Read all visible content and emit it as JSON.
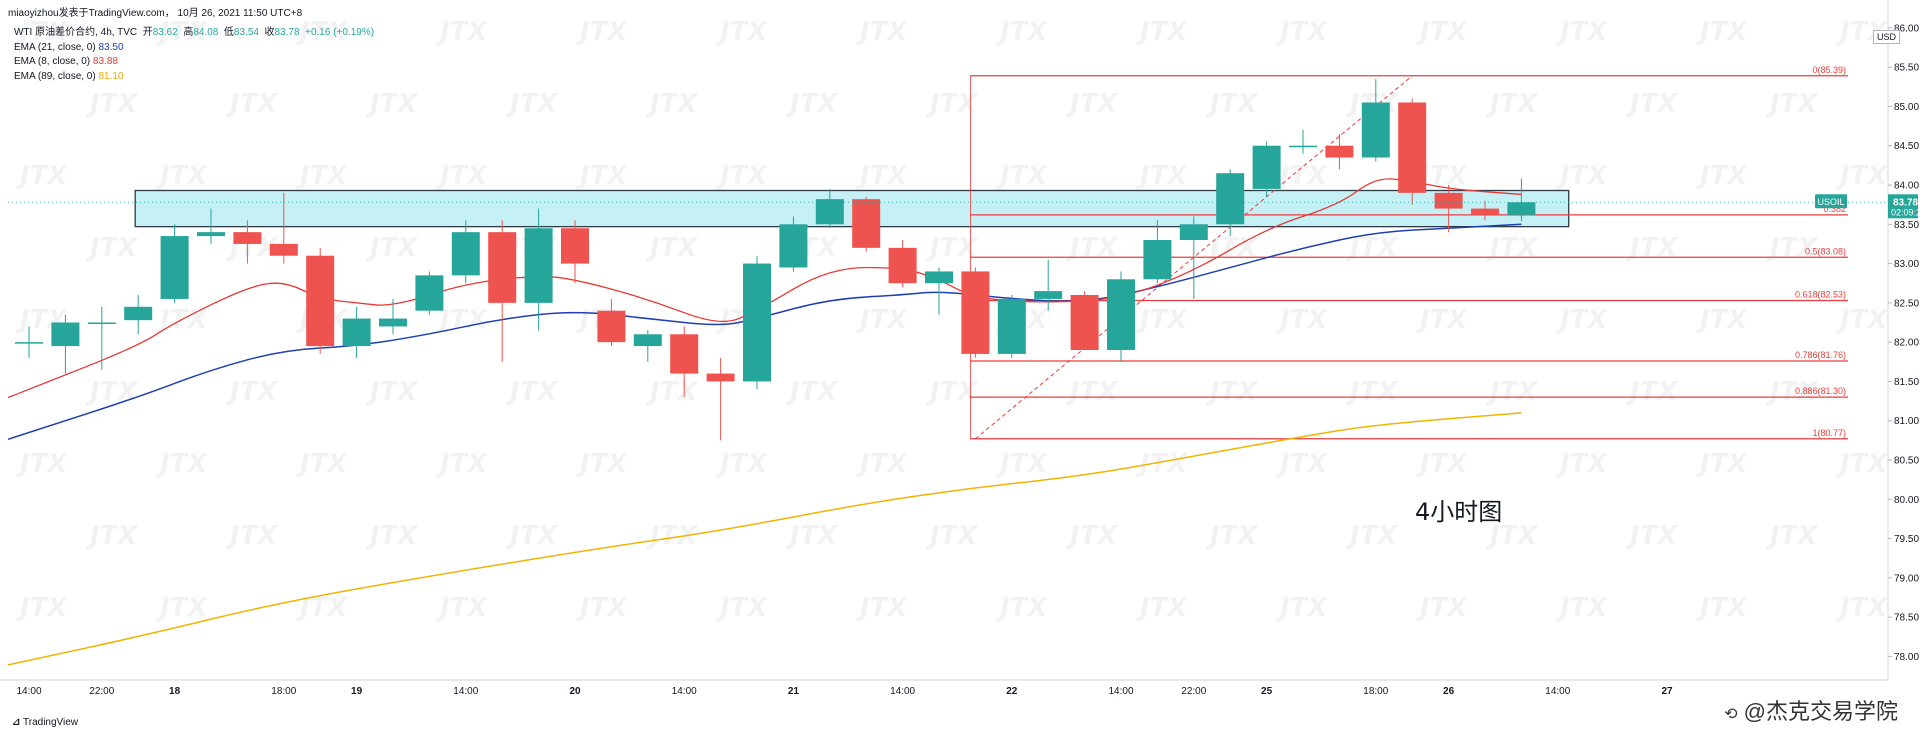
{
  "header": {
    "published": "miaoyizhou发表于TradingView.com， 10月 26, 2021 11:50 UTC+8"
  },
  "legend": {
    "symbol": "WTI 原油差价合约, 4h, TVC",
    "open_label": "开",
    "open": "83.62",
    "high_label": "高",
    "high": "84.08",
    "low_label": "低",
    "low": "83.54",
    "close_label": "收",
    "close": "83.78",
    "change": "+0.16 (+0.19%)",
    "ema21_label": "EMA (21, close, 0)",
    "ema21_value": "83.50",
    "ema8_label": "EMA (8, close, 0)",
    "ema8_value": "83.88",
    "ema89_label": "EMA (89, close, 0)",
    "ema89_value": "81.10"
  },
  "currency": "USD",
  "price_tag": {
    "symbol": "USOIL",
    "price": "83.78",
    "countdown": "02:09:27"
  },
  "annotation_text": "4小时图",
  "watermark": "JTX",
  "footer": {
    "logo": "TradingView",
    "credit": "@杰克交易学院"
  },
  "colors": {
    "up": "#26a69a",
    "down": "#ef5350",
    "ema21": "#1e3fb0",
    "ema8": "#e53935",
    "ema89": "#f0b400",
    "fib": "#ef3b3b",
    "zone": "#b2ebf2"
  },
  "chart_data": {
    "type": "candlestick",
    "timeframe": "4h",
    "y_ticks": [
      78.0,
      78.5,
      79.0,
      79.5,
      80.0,
      80.5,
      81.0,
      81.5,
      82.0,
      82.5,
      83.0,
      83.5,
      84.0,
      84.5,
      85.0,
      85.5,
      86.0
    ],
    "ylim": [
      77.7,
      86.1
    ],
    "x_ticks": [
      {
        "label": "14:00",
        "i": 0
      },
      {
        "label": "22:00",
        "i": 2
      },
      {
        "label": "18",
        "i": 4
      },
      {
        "label": "18:00",
        "i": 7
      },
      {
        "label": "19",
        "i": 9
      },
      {
        "label": "14:00",
        "i": 12
      },
      {
        "label": "20",
        "i": 15
      },
      {
        "label": "14:00",
        "i": 18
      },
      {
        "label": "21",
        "i": 21
      },
      {
        "label": "14:00",
        "i": 24
      },
      {
        "label": "22",
        "i": 27
      },
      {
        "label": "14:00",
        "i": 30
      },
      {
        "label": "22:00",
        "i": 32
      },
      {
        "label": "25",
        "i": 34
      },
      {
        "label": "18:00",
        "i": 37
      },
      {
        "label": "26",
        "i": 39
      },
      {
        "label": "14:00",
        "i": 42
      },
      {
        "label": "27",
        "i": 45
      }
    ],
    "candles": [
      {
        "i": 0,
        "o": 82.0,
        "h": 82.2,
        "l": 81.8,
        "c": 82.0
      },
      {
        "i": 1,
        "o": 81.95,
        "h": 82.35,
        "l": 81.6,
        "c": 82.25
      },
      {
        "i": 2,
        "o": 82.25,
        "h": 82.45,
        "l": 81.65,
        "c": 82.25
      },
      {
        "i": 3,
        "o": 82.28,
        "h": 82.6,
        "l": 82.1,
        "c": 82.45
      },
      {
        "i": 4,
        "o": 82.55,
        "h": 83.5,
        "l": 82.5,
        "c": 83.35
      },
      {
        "i": 5,
        "o": 83.35,
        "h": 83.7,
        "l": 83.25,
        "c": 83.4
      },
      {
        "i": 6,
        "o": 83.4,
        "h": 83.55,
        "l": 83.0,
        "c": 83.25
      },
      {
        "i": 7,
        "o": 83.25,
        "h": 83.9,
        "l": 83.0,
        "c": 83.1
      },
      {
        "i": 8,
        "o": 83.1,
        "h": 83.2,
        "l": 81.85,
        "c": 81.95
      },
      {
        "i": 9,
        "o": 81.95,
        "h": 82.45,
        "l": 81.8,
        "c": 82.3
      },
      {
        "i": 10,
        "o": 82.2,
        "h": 82.55,
        "l": 82.1,
        "c": 82.3
      },
      {
        "i": 11,
        "o": 82.4,
        "h": 82.9,
        "l": 82.35,
        "c": 82.85
      },
      {
        "i": 12,
        "o": 82.85,
        "h": 83.55,
        "l": 82.75,
        "c": 83.4
      },
      {
        "i": 13,
        "o": 83.4,
        "h": 83.55,
        "l": 81.75,
        "c": 82.5
      },
      {
        "i": 14,
        "o": 82.5,
        "h": 83.7,
        "l": 82.15,
        "c": 83.45
      },
      {
        "i": 15,
        "o": 83.45,
        "h": 83.55,
        "l": 82.75,
        "c": 83.0
      },
      {
        "i": 16,
        "o": 82.4,
        "h": 82.55,
        "l": 81.95,
        "c": 82.0
      },
      {
        "i": 17,
        "o": 81.95,
        "h": 82.15,
        "l": 81.75,
        "c": 82.1
      },
      {
        "i": 18,
        "o": 82.1,
        "h": 82.2,
        "l": 81.3,
        "c": 81.6
      },
      {
        "i": 19,
        "o": 81.6,
        "h": 81.8,
        "l": 80.75,
        "c": 81.5
      },
      {
        "i": 20,
        "o": 81.5,
        "h": 83.1,
        "l": 81.4,
        "c": 83.0
      },
      {
        "i": 21,
        "o": 82.95,
        "h": 83.6,
        "l": 82.9,
        "c": 83.5
      },
      {
        "i": 22,
        "o": 83.5,
        "h": 83.95,
        "l": 83.45,
        "c": 83.82
      },
      {
        "i": 23,
        "o": 83.82,
        "h": 83.85,
        "l": 83.15,
        "c": 83.2
      },
      {
        "i": 24,
        "o": 83.2,
        "h": 83.3,
        "l": 82.7,
        "c": 82.75
      },
      {
        "i": 25,
        "o": 82.75,
        "h": 82.95,
        "l": 82.35,
        "c": 82.9
      },
      {
        "i": 26,
        "o": 82.9,
        "h": 82.95,
        "l": 81.8,
        "c": 81.85
      },
      {
        "i": 27,
        "o": 81.85,
        "h": 82.6,
        "l": 81.8,
        "c": 82.55
      },
      {
        "i": 28,
        "o": 82.55,
        "h": 83.05,
        "l": 82.4,
        "c": 82.65
      },
      {
        "i": 29,
        "o": 82.6,
        "h": 82.65,
        "l": 81.9,
        "c": 81.9
      },
      {
        "i": 30,
        "o": 81.9,
        "h": 82.9,
        "l": 81.75,
        "c": 82.8
      },
      {
        "i": 31,
        "o": 82.8,
        "h": 83.55,
        "l": 82.75,
        "c": 83.3
      },
      {
        "i": 32,
        "o": 83.3,
        "h": 83.6,
        "l": 82.55,
        "c": 83.5
      },
      {
        "i": 33,
        "o": 83.5,
        "h": 84.2,
        "l": 83.35,
        "c": 84.15
      },
      {
        "i": 34,
        "o": 83.95,
        "h": 84.55,
        "l": 83.85,
        "c": 84.5
      },
      {
        "i": 35,
        "o": 84.5,
        "h": 84.7,
        "l": 84.4,
        "c": 84.5
      },
      {
        "i": 36,
        "o": 84.5,
        "h": 84.65,
        "l": 84.2,
        "c": 84.35
      },
      {
        "i": 37,
        "o": 84.35,
        "h": 85.35,
        "l": 84.3,
        "c": 85.05
      },
      {
        "i": 38,
        "o": 85.05,
        "h": 85.1,
        "l": 83.75,
        "c": 83.9
      },
      {
        "i": 39,
        "o": 83.9,
        "h": 84.0,
        "l": 83.4,
        "c": 83.7
      },
      {
        "i": 40,
        "o": 83.7,
        "h": 83.8,
        "l": 83.55,
        "c": 83.62
      },
      {
        "i": 41,
        "o": 83.62,
        "h": 84.08,
        "l": 83.54,
        "c": 83.78
      }
    ],
    "ema8": [
      [
        0,
        81.4
      ],
      [
        3,
        81.95
      ],
      [
        4,
        82.25
      ],
      [
        6,
        82.7
      ],
      [
        7,
        82.78
      ],
      [
        8,
        82.55
      ],
      [
        9,
        82.5
      ],
      [
        10,
        82.45
      ],
      [
        12,
        82.75
      ],
      [
        14,
        82.85
      ],
      [
        15,
        82.8
      ],
      [
        17,
        82.55
      ],
      [
        19,
        82.2
      ],
      [
        20,
        82.4
      ],
      [
        22,
        82.95
      ],
      [
        24,
        82.95
      ],
      [
        25,
        82.8
      ],
      [
        26,
        82.55
      ],
      [
        28,
        82.5
      ],
      [
        30,
        82.55
      ],
      [
        32,
        82.9
      ],
      [
        34,
        83.45
      ],
      [
        36,
        83.75
      ],
      [
        37,
        84.1
      ],
      [
        38,
        84.05
      ],
      [
        39,
        83.95
      ],
      [
        41,
        83.88
      ]
    ],
    "ema21": [
      [
        0,
        80.85
      ],
      [
        3,
        81.3
      ],
      [
        5,
        81.65
      ],
      [
        7,
        81.9
      ],
      [
        9,
        81.95
      ],
      [
        11,
        82.1
      ],
      [
        13,
        82.3
      ],
      [
        15,
        82.4
      ],
      [
        17,
        82.3
      ],
      [
        19,
        82.2
      ],
      [
        20,
        82.3
      ],
      [
        22,
        82.55
      ],
      [
        24,
        82.6
      ],
      [
        25,
        82.65
      ],
      [
        27,
        82.55
      ],
      [
        29,
        82.5
      ],
      [
        31,
        82.7
      ],
      [
        33,
        82.95
      ],
      [
        35,
        83.2
      ],
      [
        37,
        83.4
      ],
      [
        39,
        83.45
      ],
      [
        41,
        83.5
      ]
    ],
    "ema89": [
      [
        0,
        77.95
      ],
      [
        3,
        78.25
      ],
      [
        7,
        78.7
      ],
      [
        12,
        79.1
      ],
      [
        16,
        79.4
      ],
      [
        19,
        79.6
      ],
      [
        23,
        79.95
      ],
      [
        26,
        80.15
      ],
      [
        29,
        80.3
      ],
      [
        32,
        80.55
      ],
      [
        35,
        80.8
      ],
      [
        37,
        80.95
      ],
      [
        41,
        81.1
      ]
    ],
    "fib_levels": [
      {
        "ratio": "0",
        "price": 85.39,
        "label": "0(85.39)"
      },
      {
        "ratio": "0.382",
        "price": 83.62,
        "label": "0.382"
      },
      {
        "ratio": "0.5",
        "price": 83.08,
        "label": "0.5(83.08)"
      },
      {
        "ratio": "0.618",
        "price": 82.53,
        "label": "0.618(82.53)"
      },
      {
        "ratio": "0.786",
        "price": 81.76,
        "label": "0.786(81.76)"
      },
      {
        "ratio": "0.886",
        "price": 81.3,
        "label": "0.886(81.30)"
      },
      {
        "ratio": "1",
        "price": 80.77,
        "label": "1(80.77)"
      }
    ],
    "fib_anchor": {
      "from": [
        26,
        80.77
      ],
      "to": [
        38,
        85.39
      ]
    },
    "zone": {
      "from_i": 3,
      "to_i": 42.3,
      "top": 83.93,
      "bottom": 83.47
    },
    "last_price": 83.78
  }
}
